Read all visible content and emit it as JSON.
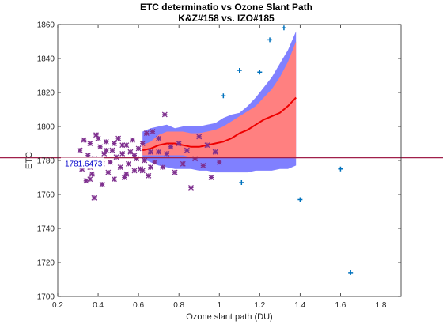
{
  "chart_data": {
    "type": "scatter",
    "title": "ETC determinatio  vs Ozone Slant Path",
    "subtitle": "K&Z#158 vs. IZO#185",
    "xlabel": "Ozone slant path (DU)",
    "ylabel": "ETC",
    "xlim": [
      0.2,
      1.9
    ],
    "ylim": [
      1700,
      1860
    ],
    "xticks": [
      "0.2",
      "0.4",
      "0.6",
      "0.8",
      "1",
      "1.2",
      "1.4",
      "1.6",
      "1.8"
    ],
    "yticks": [
      "1700",
      "1720",
      "1740",
      "1760",
      "1780",
      "1800",
      "1820",
      "1840",
      "1860"
    ],
    "grid": false,
    "reference_line": {
      "y": 1781.6473,
      "label": "1781.6473",
      "color": "#a0204a"
    },
    "band_x": [
      0.62,
      0.66,
      0.7,
      0.74,
      0.78,
      0.82,
      0.86,
      0.9,
      0.94,
      0.98,
      1.02,
      1.06,
      1.1,
      1.14,
      1.18,
      1.22,
      1.26,
      1.3,
      1.34,
      1.38
    ],
    "outer_upper": [
      1797,
      1799,
      1800,
      1801,
      1799,
      1800,
      1800,
      1800,
      1801,
      1802,
      1805,
      1807,
      1808,
      1812,
      1817,
      1823,
      1829,
      1837,
      1845,
      1856
    ],
    "outer_lower": [
      1781,
      1779,
      1777,
      1776,
      1775,
      1775,
      1775,
      1774,
      1774,
      1773,
      1773,
      1773,
      1773,
      1773,
      1774,
      1774,
      1774,
      1775,
      1775,
      1777
    ],
    "inner_upper": [
      1789,
      1791,
      1795,
      1797,
      1797,
      1797,
      1796,
      1796,
      1797,
      1798,
      1800,
      1803,
      1806,
      1809,
      1812,
      1817,
      1822,
      1829,
      1838,
      1850
    ],
    "inner_lower": [
      1783,
      1783,
      1783,
      1783,
      1783,
      1783,
      1782,
      1782,
      1782,
      1782,
      1782,
      1782,
      1782,
      1782,
      1782,
      1782,
      1782,
      1782,
      1782,
      1781
    ],
    "fit_line": [
      1786,
      1787,
      1789,
      1790,
      1790,
      1789,
      1788,
      1788,
      1789,
      1790,
      1791,
      1793,
      1796,
      1798,
      1801,
      1804,
      1806,
      1808,
      1812,
      1817
    ],
    "cluster_points": [
      [
        0.31,
        1786
      ],
      [
        0.32,
        1775
      ],
      [
        0.33,
        1792
      ],
      [
        0.34,
        1768
      ],
      [
        0.35,
        1783
      ],
      [
        0.36,
        1790
      ],
      [
        0.37,
        1772
      ],
      [
        0.38,
        1758
      ],
      [
        0.38,
        1781
      ],
      [
        0.39,
        1795
      ],
      [
        0.4,
        1777
      ],
      [
        0.41,
        1788
      ],
      [
        0.42,
        1766
      ],
      [
        0.43,
        1784
      ],
      [
        0.44,
        1791
      ],
      [
        0.45,
        1773
      ],
      [
        0.46,
        1779
      ],
      [
        0.47,
        1786
      ],
      [
        0.48,
        1769
      ],
      [
        0.49,
        1782
      ],
      [
        0.5,
        1793
      ],
      [
        0.51,
        1776
      ],
      [
        0.52,
        1784
      ],
      [
        0.53,
        1770
      ],
      [
        0.54,
        1789
      ],
      [
        0.55,
        1778
      ],
      [
        0.56,
        1785
      ],
      [
        0.57,
        1792
      ],
      [
        0.58,
        1774
      ],
      [
        0.59,
        1781
      ],
      [
        0.6,
        1787
      ],
      [
        0.61,
        1775
      ],
      [
        0.62,
        1790
      ],
      [
        0.63,
        1780
      ],
      [
        0.64,
        1796
      ],
      [
        0.65,
        1771
      ],
      [
        0.66,
        1785
      ],
      [
        0.67,
        1797
      ],
      [
        0.68,
        1779
      ],
      [
        0.7,
        1793
      ],
      [
        0.72,
        1776
      ],
      [
        0.73,
        1807
      ],
      [
        0.74,
        1784
      ],
      [
        0.76,
        1788
      ],
      [
        0.78,
        1773
      ],
      [
        0.8,
        1790
      ],
      [
        0.82,
        1778
      ],
      [
        0.84,
        1786
      ],
      [
        0.86,
        1764
      ],
      [
        0.88,
        1781
      ],
      [
        0.9,
        1794
      ],
      [
        0.92,
        1777
      ],
      [
        0.94,
        1789
      ],
      [
        0.96,
        1770
      ],
      [
        0.98,
        1785
      ],
      [
        1.0,
        1779
      ],
      [
        0.34,
        1780
      ],
      [
        0.36,
        1776
      ],
      [
        0.44,
        1786
      ],
      [
        0.52,
        1789
      ],
      [
        0.58,
        1783
      ],
      [
        0.62,
        1774
      ],
      [
        0.31,
        1779
      ],
      [
        0.42,
        1778
      ],
      [
        0.48,
        1790
      ],
      [
        0.54,
        1772
      ],
      [
        0.66,
        1776
      ],
      [
        0.7,
        1785
      ],
      [
        0.36,
        1769
      ],
      [
        0.4,
        1793
      ]
    ],
    "sparse_points": [
      [
        1.02,
        1818
      ],
      [
        1.1,
        1833
      ],
      [
        1.11,
        1767
      ],
      [
        1.2,
        1832
      ],
      [
        1.25,
        1851
      ],
      [
        1.32,
        1858
      ],
      [
        1.4,
        1757
      ],
      [
        1.6,
        1775
      ],
      [
        1.65,
        1714
      ]
    ]
  }
}
